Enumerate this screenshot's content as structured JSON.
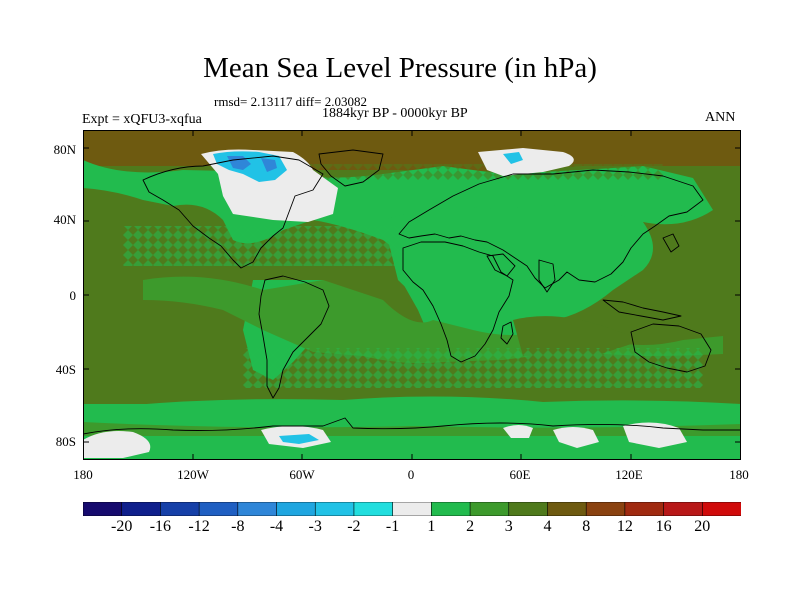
{
  "title": "Mean Sea Level Pressure (in hPa)",
  "stats_line": "rmsd= 2.13117 diff= 2.03082",
  "period": "1884kyr BP - 0000kyr BP",
  "experiment": "Expt = xQFU3-xqfua",
  "season": "ANN",
  "latitude_labels": [
    "80N",
    "40N",
    "0",
    "40S",
    "80S"
  ],
  "longitude_labels": [
    "180",
    "120W",
    "60W",
    "0",
    "60E",
    "120E",
    "180"
  ],
  "colorbar": {
    "labels": [
      "-20",
      "-16",
      "-12",
      "-8",
      "-4",
      "-3",
      "-2",
      "-1",
      "1",
      "2",
      "3",
      "4",
      "8",
      "12",
      "16",
      "20"
    ],
    "colors": [
      "#160a6e",
      "#0f1f8c",
      "#1640a8",
      "#1f5fc2",
      "#2f86d8",
      "#1fa6e0",
      "#21c2e6",
      "#22dede",
      "#ececec",
      "#22bb4e",
      "#3d9a2c",
      "#4f7a1c",
      "#6e5a10",
      "#8a4210",
      "#a02a10",
      "#b81818",
      "#d00a0a"
    ]
  },
  "map": {
    "background_color": "#4f7a1c",
    "band_color": "#22bb4e",
    "mid_color": "#3d9a2c",
    "neg_color": "#ececec",
    "blue_color": "#2f86d8",
    "brown_color": "#6e5a10",
    "coast_color": "#000000"
  }
}
